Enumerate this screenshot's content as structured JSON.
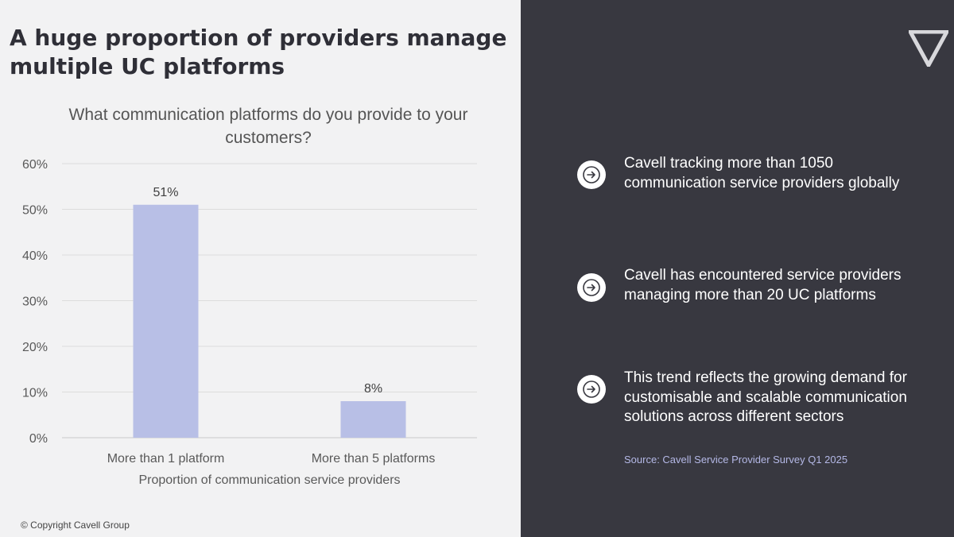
{
  "slide": {
    "title": "A huge proportion of providers manage multiple UC platforms",
    "copyright": "© Copyright Cavell Group",
    "source": "Source: Cavell Service Provider Survey Q1 2025"
  },
  "bullets": [
    {
      "icon": "arrow-right-circle-icon",
      "text": "Cavell tracking more than 1050 communication service providers globally"
    },
    {
      "icon": "arrow-right-circle-icon",
      "text": "Cavell has encountered service providers managing more than 20 UC platforms"
    },
    {
      "icon": "arrow-right-circle-icon",
      "text": "This trend reflects the growing demand for customisable and scalable communication solutions across different sectors"
    }
  ],
  "logo": {
    "icon": "inverted-triangle-logo"
  },
  "colors": {
    "bar": "#b8bfe6",
    "dark_panel": "#383840",
    "light_panel": "#f2f2f3",
    "source_text": "#b4b8e6"
  },
  "chart_data": {
    "type": "bar",
    "title": "What communication platforms do you provide to your customers?",
    "categories": [
      "More than 1 platform",
      "More than 5 platforms"
    ],
    "values": [
      51,
      8
    ],
    "data_labels": [
      "51%",
      "8%"
    ],
    "xlabel": "Proportion of communication service providers",
    "ylabel": "",
    "ylim": [
      0,
      60
    ],
    "yticks": [
      0,
      10,
      20,
      30,
      40,
      50,
      60
    ],
    "ytick_labels": [
      "0%",
      "10%",
      "20%",
      "30%",
      "40%",
      "50%",
      "60%"
    ],
    "grid": true,
    "legend": "none"
  }
}
